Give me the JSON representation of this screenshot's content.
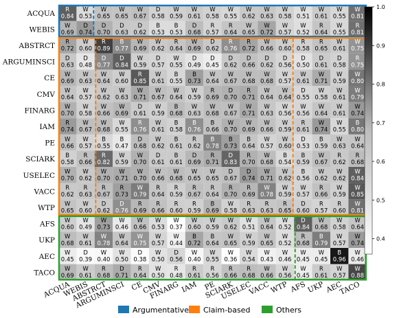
{
  "chart_data": {
    "type": "heatmap",
    "datasets": [
      "ACQUA",
      "WEBIS",
      "ABSTRCT",
      "ARGUMINSCI",
      "CE",
      "CMV",
      "FINARG",
      "IAM",
      "PE",
      "SCIARK",
      "USELEC",
      "VACC",
      "WTP",
      "AFS",
      "UKP",
      "AEC",
      "TACO"
    ],
    "letters": [
      [
        "R",
        "W",
        "W",
        "W",
        "W",
        "D",
        "W",
        "W",
        "W",
        "W",
        "W",
        "W",
        "W",
        "W",
        "W",
        "W",
        "W"
      ],
      [
        "W",
        "D",
        "D",
        "D",
        "D",
        "B",
        "B",
        "D",
        "R",
        "R",
        "W",
        "W",
        "W",
        "W",
        "R",
        "W",
        "R"
      ],
      [
        "R",
        "W",
        "R",
        "B",
        "W",
        "W",
        "R",
        "W",
        "D",
        "R",
        "R",
        "W",
        "W",
        "R",
        "R",
        "W",
        "W"
      ],
      [
        "D",
        "D",
        "D",
        "D",
        "W",
        "D",
        "W",
        "D",
        "D",
        "D",
        "D",
        "D",
        "D",
        "D",
        "D",
        "D",
        "R"
      ],
      [
        "W",
        "W",
        "W",
        "W",
        "R",
        "W",
        "B",
        "B",
        "W",
        "W",
        "W",
        "W",
        "W",
        "W",
        "W",
        "W",
        "W"
      ],
      [
        "W",
        "W",
        "W",
        "W",
        "W",
        "W",
        "W",
        "W",
        "R",
        "D",
        "R",
        "W",
        "W",
        "D",
        "W",
        "W",
        "W"
      ],
      [
        "W",
        "W",
        "W",
        "W",
        "D",
        "W",
        "B",
        "W",
        "W",
        "W",
        "W",
        "W",
        "W",
        "W",
        "W",
        "W",
        "W"
      ],
      [
        "R",
        "W",
        "W",
        "W",
        "R",
        "W",
        "B",
        "B",
        "B",
        "W",
        "W",
        "W",
        "W",
        "R",
        "W",
        "W",
        "B"
      ],
      [
        "W",
        "W",
        "B",
        "B",
        "D",
        "W",
        "B",
        "R",
        "B",
        "B",
        "B",
        "W",
        "W",
        "D",
        "B",
        "W",
        "W"
      ],
      [
        "B",
        "R",
        "R",
        "W",
        "W",
        "D",
        "B",
        "D",
        "R",
        "D",
        "R",
        "W",
        "B",
        "B",
        "W",
        "R",
        "R"
      ],
      [
        "W",
        "W",
        "W",
        "W",
        "W",
        "W",
        "W",
        "W",
        "W",
        "D",
        "D",
        "W",
        "W",
        "B",
        "W",
        "W",
        "W"
      ],
      [
        "R",
        "R",
        "R",
        "R",
        "W",
        "R",
        "R",
        "R",
        "R",
        "R",
        "R",
        "W",
        "W",
        "W",
        "R",
        "W",
        "W"
      ],
      [
        "W",
        "W",
        "D",
        "D",
        "R",
        "R",
        "R",
        "R",
        "B",
        "W",
        "R",
        "R",
        "R",
        "D",
        "R",
        "R",
        "W"
      ],
      [
        "W",
        "W",
        "W",
        "W",
        "W",
        "W",
        "W",
        "W",
        "W",
        "W",
        "W",
        "W",
        "W",
        "D",
        "W",
        "W",
        "W"
      ],
      [
        "W",
        "W",
        "W",
        "W",
        "W",
        "W",
        "W",
        "B",
        "B",
        "W",
        "W",
        "W",
        "W",
        "R",
        "B",
        "W",
        "W"
      ],
      [
        "W",
        "D",
        "W",
        "W",
        "D",
        "W",
        "D",
        "W",
        "W",
        "W",
        "W",
        "W",
        "W",
        "W",
        "W",
        "B",
        "W"
      ],
      [
        "W",
        "W",
        "R",
        "D",
        "R",
        "W",
        "R",
        "R",
        "R",
        "R",
        "R",
        "W",
        "W",
        "W",
        "R",
        "W",
        "W"
      ]
    ],
    "values": [
      [
        0.84,
        0.53,
        0.65,
        0.65,
        0.67,
        0.58,
        0.59,
        0.61,
        0.58,
        0.55,
        0.62,
        0.63,
        0.58,
        0.51,
        0.61,
        0.55,
        0.81
      ],
      [
        0.69,
        0.74,
        0.7,
        0.63,
        0.62,
        0.53,
        0.53,
        0.68,
        0.57,
        0.64,
        0.65,
        0.72,
        0.57,
        0.52,
        0.64,
        0.55,
        0.81
      ],
      [
        0.72,
        0.6,
        0.89,
        0.77,
        0.69,
        0.62,
        0.64,
        0.69,
        0.62,
        0.76,
        0.72,
        0.66,
        0.6,
        0.58,
        0.65,
        0.61,
        0.75
      ],
      [
        0.63,
        0.48,
        0.77,
        0.84,
        0.59,
        0.57,
        0.55,
        0.49,
        0.45,
        0.62,
        0.66,
        0.62,
        0.56,
        0.5,
        0.61,
        0.58,
        0.75
      ],
      [
        0.69,
        0.63,
        0.64,
        0.6,
        0.85,
        0.61,
        0.55,
        0.73,
        0.64,
        0.67,
        0.68,
        0.68,
        0.57,
        0.61,
        0.71,
        0.59,
        0.8
      ],
      [
        0.64,
        0.57,
        0.62,
        0.63,
        0.71,
        0.67,
        0.64,
        0.59,
        0.69,
        0.7,
        0.71,
        0.64,
        0.64,
        0.55,
        0.58,
        0.61,
        0.79
      ],
      [
        0.7,
        0.58,
        0.66,
        0.69,
        0.61,
        0.59,
        0.68,
        0.63,
        0.68,
        0.67,
        0.71,
        0.63,
        0.56,
        0.56,
        0.64,
        0.61,
        0.74
      ],
      [
        0.74,
        0.67,
        0.68,
        0.55,
        0.76,
        0.61,
        0.58,
        0.76,
        0.66,
        0.7,
        0.69,
        0.66,
        0.59,
        0.61,
        0.74,
        0.55,
        0.8
      ],
      [
        0.66,
        0.57,
        0.55,
        0.47,
        0.68,
        0.62,
        0.61,
        0.62,
        0.78,
        0.73,
        0.64,
        0.57,
        0.6,
        0.53,
        0.59,
        0.63,
        0.64
      ],
      [
        0.58,
        0.66,
        0.82,
        0.59,
        0.7,
        0.61,
        0.61,
        0.69,
        0.71,
        0.83,
        0.7,
        0.68,
        0.54,
        0.59,
        0.67,
        0.62,
        0.68
      ],
      [
        0.7,
        0.62,
        0.7,
        0.71,
        0.7,
        0.66,
        0.68,
        0.65,
        0.65,
        0.67,
        0.74,
        0.71,
        0.62,
        0.56,
        0.62,
        0.62,
        0.84
      ],
      [
        0.62,
        0.63,
        0.67,
        0.73,
        0.79,
        0.64,
        0.59,
        0.67,
        0.64,
        0.7,
        0.69,
        0.78,
        0.59,
        0.57,
        0.66,
        0.59,
        0.85
      ],
      [
        0.65,
        0.6,
        0.62,
        0.76,
        0.69,
        0.66,
        0.6,
        0.59,
        0.69,
        0.58,
        0.63,
        0.63,
        0.65,
        0.6,
        0.57,
        0.6,
        0.81
      ],
      [
        0.6,
        0.49,
        0.73,
        0.46,
        0.66,
        0.53,
        0.37,
        0.6,
        0.59,
        0.62,
        0.51,
        0.64,
        0.52,
        0.84,
        0.68,
        0.58,
        0.64
      ],
      [
        0.68,
        0.61,
        0.78,
        0.64,
        0.75,
        0.57,
        0.44,
        0.72,
        0.64,
        0.65,
        0.59,
        0.65,
        0.52,
        0.68,
        0.79,
        0.57,
        0.74
      ],
      [
        0.45,
        0.39,
        0.4,
        0.5,
        0.38,
        0.5,
        0.56,
        0.4,
        0.55,
        0.36,
        0.54,
        0.43,
        0.46,
        0.45,
        0.45,
        0.96,
        0.46
      ],
      [
        0.69,
        0.61,
        0.68,
        0.71,
        0.64,
        0.5,
        0.48,
        0.61,
        0.56,
        0.66,
        0.68,
        0.66,
        0.56,
        0.45,
        0.61,
        0.57,
        0.88
      ]
    ],
    "colorbar": {
      "ticks": [
        "1.0",
        "0.9",
        "0.8",
        "0.7",
        "0.6",
        "0.5",
        "0.4"
      ],
      "min": 0.36,
      "max": 1.0
    },
    "groups": [
      {
        "name": "Argumentative",
        "color": "#1f77b4",
        "start": 0,
        "end": 1
      },
      {
        "name": "Claim-based",
        "color": "#ff7f0e",
        "start": 2,
        "end": 12
      },
      {
        "name": "Others",
        "color": "#2ca02c",
        "start": 13,
        "end": 16
      }
    ]
  }
}
